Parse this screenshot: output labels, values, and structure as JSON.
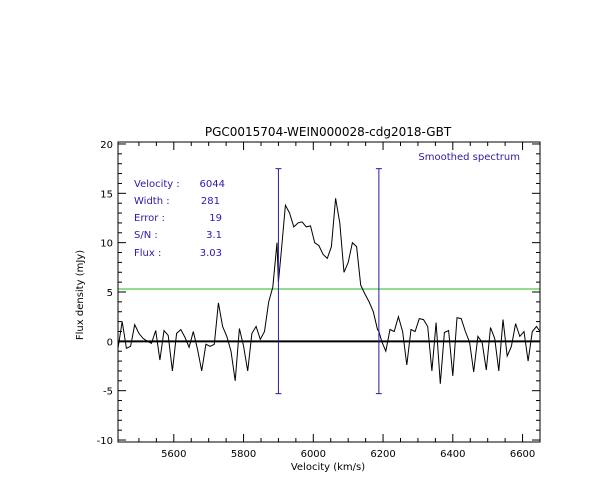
{
  "chart_data": {
    "type": "line",
    "title": "PGC0015704-WEIN000028-cdg2018-GBT",
    "xlabel": "Velocity (km/s)",
    "ylabel": "Flux density (mJy)",
    "xlim": [
      5440,
      6650
    ],
    "ylim": [
      -10.2,
      20.2
    ],
    "xticks": [
      5600,
      5800,
      6000,
      6200,
      6400,
      6600
    ],
    "yticks": [
      -10,
      -5,
      0,
      5,
      10,
      15,
      20
    ],
    "legend_text": "Smoothed spectrum",
    "annotations": [
      {
        "label": "Velocity :",
        "value": "6044"
      },
      {
        "label": "Width :",
        "value": "281"
      },
      {
        "label": "Error :",
        "value": "19"
      },
      {
        "label": "S/N :",
        "value": "3.1"
      },
      {
        "label": "Flux :",
        "value": "3.03"
      }
    ],
    "colors": {
      "spectrum": "#000000",
      "markers": "#2a1aa8",
      "threshold": "#22bb22",
      "zero_line": "#000000",
      "annotation": "#2a1aa8"
    },
    "threshold_level": 5.3,
    "zero_level": 0,
    "markers": [
      {
        "x": 5900,
        "y_top": 17.5,
        "y_bottom": -5.3
      },
      {
        "x": 6188,
        "y_top": 17.5,
        "y_bottom": -5.3
      }
    ],
    "series": [
      {
        "x": [
          5440,
          5452,
          5464,
          5476,
          5488,
          5500,
          5512,
          5524,
          5536,
          5548,
          5560,
          5572,
          5584,
          5596,
          5608,
          5620,
          5632,
          5644,
          5656,
          5668,
          5680,
          5692,
          5704,
          5716,
          5728,
          5740,
          5752,
          5764,
          5776,
          5788,
          5800,
          5812,
          5824,
          5836,
          5848,
          5860,
          5872,
          5884,
          5896,
          5900,
          5908,
          5920,
          5932,
          5944,
          5956,
          5968,
          5980,
          5992,
          6004,
          6016,
          6028,
          6040,
          6052,
          6064,
          6076,
          6088,
          6100,
          6112,
          6124,
          6136,
          6148,
          6160,
          6172,
          6184,
          6188,
          6196,
          6208,
          6220,
          6232,
          6244,
          6256,
          6268,
          6280,
          6292,
          6304,
          6316,
          6328,
          6340,
          6352,
          6364,
          6376,
          6388,
          6400,
          6412,
          6424,
          6436,
          6448,
          6460,
          6472,
          6484,
          6496,
          6508,
          6520,
          6532,
          6544,
          6556,
          6568,
          6580,
          6592,
          6604,
          6616,
          6628,
          6640,
          6650
        ],
        "y": [
          -0.7,
          2.0,
          -0.7,
          -0.5,
          1.7,
          0.8,
          0.3,
          0.0,
          -0.2,
          1.1,
          -1.9,
          1.1,
          0.6,
          -3.0,
          0.8,
          1.2,
          0.4,
          -0.6,
          1.0,
          -0.8,
          -3.0,
          -0.3,
          -0.5,
          -0.3,
          3.9,
          1.5,
          0.5,
          -1.0,
          -4.0,
          1.3,
          -0.5,
          -3.0,
          0.8,
          1.5,
          0.2,
          1.0,
          4.0,
          5.5,
          10.0,
          6.0,
          9.0,
          13.8,
          13.0,
          11.6,
          12.0,
          12.1,
          11.6,
          11.7,
          10.0,
          9.7,
          8.8,
          8.4,
          9.6,
          14.5,
          12.0,
          7.0,
          8.0,
          10.0,
          9.6,
          5.7,
          4.8,
          4.0,
          3.0,
          1.2,
          1.0,
          0.0,
          -1.0,
          1.2,
          1.0,
          2.5,
          1.0,
          -2.4,
          1.2,
          1.0,
          2.3,
          2.2,
          1.5,
          -3.0,
          1.9,
          -4.3,
          0.9,
          1.1,
          -3.5,
          2.4,
          2.3,
          1.0,
          -0.1,
          -3.1,
          0.5,
          -0.1,
          -2.9,
          1.4,
          0.3,
          -3.0,
          2.2,
          -1.5,
          -0.5,
          1.8,
          0.5,
          1.0,
          -2.0,
          1.0,
          1.5,
          1.0
        ]
      }
    ]
  }
}
